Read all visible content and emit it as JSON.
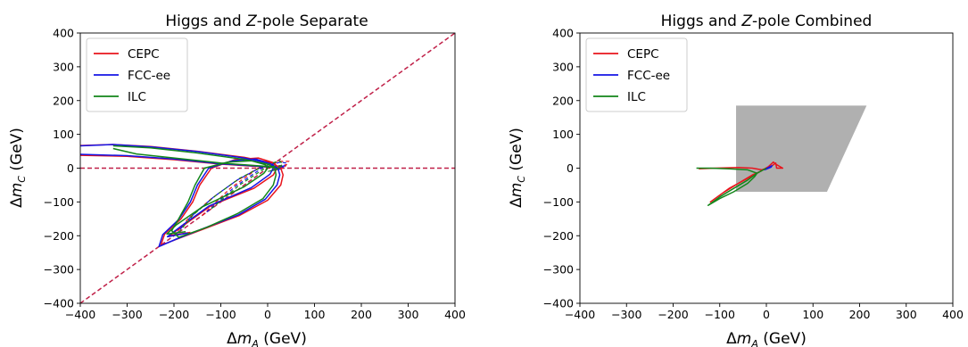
{
  "colors": {
    "CEPC": "#e8141c",
    "FCC-ee": "#1515e6",
    "ILC": "#13861a",
    "diagonal_dash": "#c02048",
    "region_fill": "#b0b0b0"
  },
  "chart_data": [
    {
      "type": "line",
      "title": "Higgs and Z-pole Separate",
      "title_parts": [
        "Higgs and ",
        "Z",
        "-pole Separate"
      ],
      "xlabel": "Δm_A (GeV)",
      "ylabel": "Δm_C (GeV)",
      "xlim": [
        -400,
        400
      ],
      "ylim": [
        -400,
        400
      ],
      "xticks": [
        "−400",
        "−300",
        "−200",
        "−100",
        "0",
        "100",
        "200",
        "300",
        "400"
      ],
      "yticks": [
        "−400",
        "−300",
        "−200",
        "−100",
        "0",
        "100",
        "200",
        "300",
        "400"
      ],
      "grid": false,
      "legend_position": "upper-left",
      "legend": [
        "CEPC",
        "FCC-ee",
        "ILC"
      ],
      "reference_lines": [
        {
          "style": "dashed",
          "points": [
            [
              -400,
              -400
            ],
            [
              400,
              400
            ]
          ]
        },
        {
          "style": "dashed",
          "points": [
            [
              -400,
              0
            ],
            [
              400,
              0
            ]
          ]
        }
      ],
      "series": [
        {
          "name": "CEPC",
          "solid": [
            [
              [
                -400,
                67
              ],
              [
                -330,
                70
              ],
              [
                -250,
                64
              ],
              [
                -150,
                50
              ],
              [
                -50,
                32
              ],
              [
                10,
                15
              ],
              [
                28,
                0
              ],
              [
                33,
                -20
              ],
              [
                28,
                -50
              ],
              [
                0,
                -95
              ],
              [
                -60,
                -140
              ],
              [
                -140,
                -182
              ],
              [
                -190,
                -208
              ],
              [
                -228,
                -228
              ],
              [
                -220,
                -195
              ],
              [
                -185,
                -150
              ],
              [
                -160,
                -100
              ],
              [
                -145,
                -50
              ],
              [
                -120,
                0
              ],
              [
                -70,
                25
              ],
              [
                -20,
                30
              ],
              [
                15,
                15
              ],
              [
                20,
                0
              ],
              [
                12,
                -20
              ],
              [
                -30,
                -60
              ],
              [
                -120,
                -110
              ],
              [
                -180,
                -170
              ],
              [
                -210,
                -200
              ],
              [
                -165,
                -190
              ]
            ],
            [
              [
                -400,
                38
              ],
              [
                -300,
                35
              ],
              [
                -200,
                25
              ],
              [
                -100,
                12
              ],
              [
                0,
                3
              ],
              [
                30,
                0
              ]
            ]
          ],
          "dashed": [
            [
              [
                -200,
                -200
              ],
              [
                -170,
                -150
              ],
              [
                -120,
                -90
              ],
              [
                -70,
                -40
              ],
              [
                -20,
                0
              ],
              [
                25,
                20
              ],
              [
                45,
                20
              ],
              [
                35,
                0
              ],
              [
                10,
                -5
              ]
            ],
            [
              [
                -140,
                -140
              ],
              [
                -80,
                -60
              ],
              [
                -20,
                0
              ],
              [
                40,
                10
              ],
              [
                20,
                -5
              ]
            ]
          ]
        },
        {
          "name": "FCC-ee",
          "solid": [
            [
              [
                -400,
                66
              ],
              [
                -330,
                70
              ],
              [
                -250,
                63
              ],
              [
                -150,
                49
              ],
              [
                -50,
                30
              ],
              [
                5,
                14
              ],
              [
                22,
                0
              ],
              [
                26,
                -20
              ],
              [
                20,
                -50
              ],
              [
                -5,
                -92
              ],
              [
                -62,
                -138
              ],
              [
                -140,
                -180
              ],
              [
                -195,
                -210
              ],
              [
                -232,
                -232
              ],
              [
                -224,
                -197
              ],
              [
                -190,
                -152
              ],
              [
                -165,
                -100
              ],
              [
                -150,
                -50
              ],
              [
                -126,
                0
              ],
              [
                -75,
                22
              ],
              [
                -25,
                27
              ],
              [
                8,
                12
              ],
              [
                12,
                0
              ],
              [
                5,
                -18
              ],
              [
                -35,
                -58
              ],
              [
                -125,
                -112
              ],
              [
                -185,
                -172
              ],
              [
                -214,
                -203
              ],
              [
                -170,
                -192
              ]
            ],
            [
              [
                -400,
                41
              ],
              [
                -300,
                37
              ],
              [
                -200,
                27
              ],
              [
                -100,
                13
              ],
              [
                0,
                4
              ],
              [
                25,
                0
              ]
            ]
          ],
          "dashed": [
            [
              [
                -195,
                -195
              ],
              [
                -165,
                -145
              ],
              [
                -115,
                -85
              ],
              [
                -65,
                -35
              ],
              [
                -15,
                2
              ],
              [
                28,
                18
              ],
              [
                40,
                15
              ],
              [
                30,
                -2
              ],
              [
                5,
                -8
              ]
            ],
            [
              [
                -130,
                -130
              ],
              [
                -70,
                -55
              ],
              [
                -10,
                2
              ],
              [
                35,
                8
              ],
              [
                15,
                -6
              ]
            ]
          ]
        },
        {
          "name": "ILC",
          "solid": [
            [
              [
                -330,
                66
              ],
              [
                -250,
                60
              ],
              [
                -150,
                45
              ],
              [
                -50,
                26
              ],
              [
                0,
                12
              ],
              [
                15,
                0
              ],
              [
                18,
                -20
              ],
              [
                12,
                -50
              ],
              [
                -10,
                -90
              ],
              [
                -65,
                -135
              ],
              [
                -130,
                -175
              ],
              [
                -190,
                -205
              ],
              [
                -205,
                -185
              ],
              [
                -190,
                -150
              ],
              [
                -170,
                -100
              ],
              [
                -155,
                -50
              ],
              [
                -135,
                0
              ],
              [
                -85,
                18
              ],
              [
                -35,
                22
              ],
              [
                -5,
                10
              ],
              [
                0,
                0
              ],
              [
                -8,
                -15
              ],
              [
                -50,
                -55
              ],
              [
                -140,
                -115
              ],
              [
                -195,
                -168
              ],
              [
                -215,
                -195
              ],
              [
                -175,
                -188
              ]
            ],
            [
              [
                -330,
                58
              ],
              [
                -280,
                42
              ],
              [
                -200,
                30
              ],
              [
                -100,
                15
              ],
              [
                0,
                5
              ],
              [
                15,
                0
              ]
            ]
          ],
          "dashed": [
            [
              [
                -190,
                -190
              ],
              [
                -160,
                -140
              ],
              [
                -110,
                -80
              ],
              [
                -60,
                -30
              ],
              [
                -10,
                5
              ],
              [
                25,
                22
              ],
              [
                32,
                12
              ],
              [
                22,
                -3
              ],
              [
                0,
                -10
              ]
            ],
            [
              [
                -120,
                -120
              ],
              [
                -60,
                -50
              ],
              [
                0,
                5
              ],
              [
                30,
                6
              ],
              [
                10,
                -8
              ]
            ]
          ]
        }
      ]
    },
    {
      "type": "line",
      "title": "Higgs and Z-pole Combined",
      "title_parts": [
        "Higgs and ",
        "Z",
        "-pole Combined"
      ],
      "xlabel": "Δm_A (GeV)",
      "ylabel": "Δm_C (GeV)",
      "xlim": [
        -400,
        400
      ],
      "ylim": [
        -400,
        400
      ],
      "xticks": [
        "−400",
        "−300",
        "−200",
        "−100",
        "0",
        "100",
        "200",
        "300",
        "400"
      ],
      "yticks": [
        "−400",
        "−300",
        "−200",
        "−100",
        "0",
        "100",
        "200",
        "300",
        "400"
      ],
      "grid": false,
      "legend_position": "upper-left",
      "legend": [
        "CEPC",
        "FCC-ee",
        "ILC"
      ],
      "shaded_region": [
        [
          -65,
          185
        ],
        [
          215,
          185
        ],
        [
          130,
          -70
        ],
        [
          -65,
          -70
        ],
        [
          -65,
          160
        ]
      ],
      "series": [
        {
          "name": "CEPC",
          "solid": [
            [
              [
                -145,
                -2
              ],
              [
                -110,
                0
              ],
              [
                -60,
                2
              ],
              [
                -30,
                0
              ],
              [
                -10,
                -5
              ],
              [
                10,
                5
              ],
              [
                20,
                15
              ],
              [
                22,
                0
              ],
              [
                35,
                0
              ],
              [
                20,
                12
              ],
              [
                15,
                18
              ],
              [
                5,
                5
              ],
              [
                -20,
                -15
              ],
              [
                -40,
                -30
              ],
              [
                -80,
                -60
              ],
              [
                -120,
                -100
              ],
              [
                -95,
                -75
              ],
              [
                -60,
                -45
              ],
              [
                -30,
                -20
              ],
              [
                -10,
                -8
              ]
            ]
          ],
          "dashed": []
        },
        {
          "name": "FCC-ee",
          "solid": [
            [
              [
                -5,
                -5
              ],
              [
                5,
                2
              ],
              [
                12,
                7
              ],
              [
                10,
                3
              ],
              [
                0,
                -3
              ],
              [
                -5,
                -5
              ]
            ]
          ],
          "dashed": []
        },
        {
          "name": "ILC",
          "solid": [
            [
              [
                -150,
                0
              ],
              [
                -120,
                0
              ],
              [
                -80,
                -2
              ],
              [
                -40,
                -5
              ],
              [
                -20,
                -15
              ],
              [
                -40,
                -35
              ],
              [
                -70,
                -60
              ],
              [
                -100,
                -85
              ],
              [
                -125,
                -110
              ],
              [
                -100,
                -90
              ],
              [
                -70,
                -70
              ],
              [
                -40,
                -45
              ],
              [
                -25,
                -25
              ],
              [
                -20,
                -15
              ],
              [
                0,
                0
              ]
            ]
          ],
          "dashed": []
        }
      ]
    }
  ]
}
